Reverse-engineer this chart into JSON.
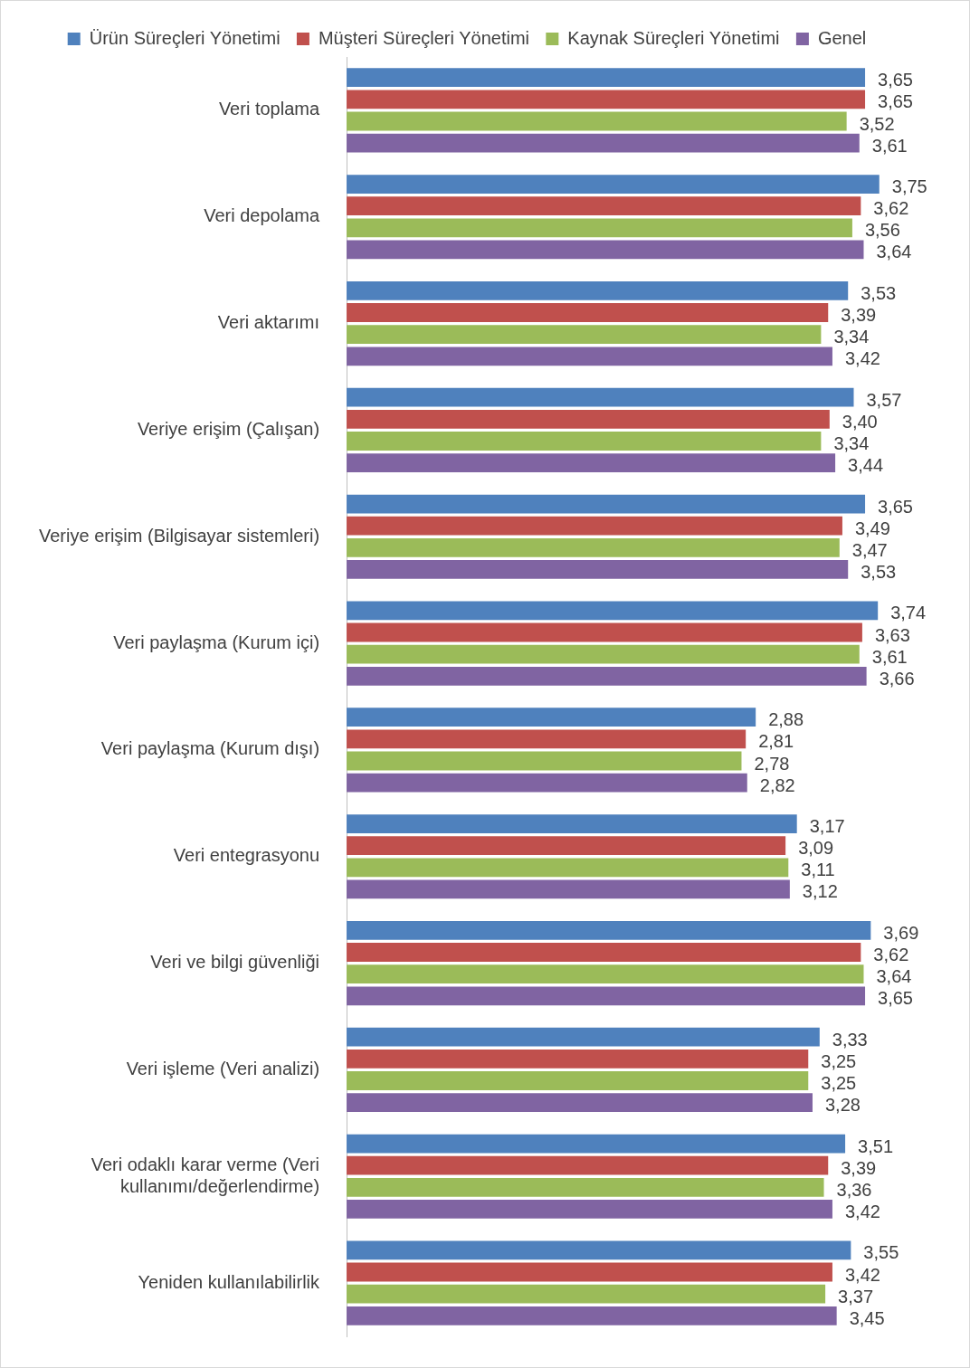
{
  "chart_data": {
    "type": "bar",
    "orientation": "horizontal",
    "legend": "top",
    "grid": false,
    "tick_labels": "y",
    "categories": [
      "Veri toplama",
      "Veri depolama",
      "Veri aktarımı",
      "Veriye erişim (Çalışan)",
      "Veriye erişim (Bilgisayar sistemleri)",
      "Veri paylaşma (Kurum içi)",
      "Veri paylaşma (Kurum dışı)",
      "Veri entegrasyonu",
      "Veri ve bilgi güvenliği",
      "Veri işleme (Veri analizi)",
      "Veri odaklı karar verme (Veri kullanımı/değerlendirme)",
      "Yeniden kullanılabilirlik"
    ],
    "series": [
      {
        "name": "Ürün Süreçleri Yönetimi",
        "color": "#4f81bd",
        "values": [
          3.65,
          3.75,
          3.53,
          3.57,
          3.65,
          3.74,
          2.88,
          3.17,
          3.69,
          3.33,
          3.51,
          3.55
        ],
        "value_labels": [
          "3,65",
          "3,75",
          "3,53",
          "3,57",
          "3,65",
          "3,74",
          "2,88",
          "3,17",
          "3,69",
          "3,33",
          "3,51",
          "3,55"
        ]
      },
      {
        "name": "Müşteri Süreçleri Yönetimi",
        "color": "#c0504d",
        "values": [
          3.65,
          3.62,
          3.39,
          3.4,
          3.49,
          3.63,
          2.81,
          3.09,
          3.62,
          3.25,
          3.39,
          3.42
        ],
        "value_labels": [
          "3,65",
          "3,62",
          "3,39",
          "3,40",
          "3,49",
          "3,63",
          "2,81",
          "3,09",
          "3,62",
          "3,25",
          "3,39",
          "3,42"
        ]
      },
      {
        "name": "Kaynak Süreçleri Yönetimi",
        "color": "#9bbb59",
        "values": [
          3.52,
          3.56,
          3.34,
          3.34,
          3.47,
          3.61,
          2.78,
          3.11,
          3.64,
          3.25,
          3.36,
          3.37
        ],
        "value_labels": [
          "3,52",
          "3,56",
          "3,34",
          "3,34",
          "3,47",
          "3,61",
          "2,78",
          "3,11",
          "3,64",
          "3,25",
          "3,36",
          "3,37"
        ]
      },
      {
        "name": "Genel",
        "color": "#8064a2",
        "values": [
          3.61,
          3.64,
          3.42,
          3.44,
          3.53,
          3.66,
          2.82,
          3.12,
          3.65,
          3.28,
          3.42,
          3.45
        ],
        "value_labels": [
          "3,61",
          "3,64",
          "3,42",
          "3,44",
          "3,53",
          "3,66",
          "2,82",
          "3,12",
          "3,65",
          "3,28",
          "3,42",
          "3,45"
        ]
      }
    ]
  }
}
